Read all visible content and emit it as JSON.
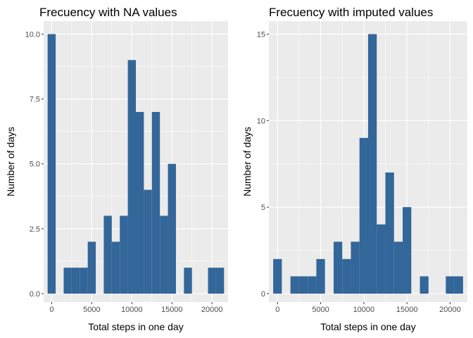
{
  "chart_data": [
    {
      "type": "bar",
      "title": "Frecuency with NA values",
      "xlabel": "Total steps in one day",
      "ylabel": "Number of days",
      "bin_width": 1000,
      "bin_centers": [
        0,
        2000,
        3000,
        4000,
        5000,
        7000,
        8000,
        9000,
        10000,
        11000,
        12000,
        13000,
        14000,
        15000,
        17000,
        20000,
        21000
      ],
      "values": [
        10,
        1,
        1,
        1,
        2,
        3,
        2,
        3,
        9,
        7,
        4,
        7,
        3,
        5,
        1,
        1,
        1
      ],
      "xlim": [
        -1000,
        22000
      ],
      "ylim": [
        0,
        10.5
      ],
      "x_ticks": [
        0,
        5000,
        10000,
        15000,
        20000
      ],
      "x_tick_labels": [
        "0",
        "5000",
        "10000",
        "15000",
        "20000"
      ],
      "y_ticks": [
        0,
        2.5,
        5,
        7.5,
        10
      ],
      "y_tick_labels": [
        "0.0",
        "2.5",
        "5.0",
        "7.5",
        "10.0"
      ],
      "fill_color": "#336699",
      "panel_color": "#ebebeb",
      "grid": true
    },
    {
      "type": "bar",
      "title": "Frecuency with imputed values",
      "xlabel": "Total steps in one day",
      "ylabel": "Number of days",
      "bin_width": 1000,
      "bin_centers": [
        0,
        2000,
        3000,
        4000,
        5000,
        7000,
        8000,
        9000,
        10000,
        11000,
        12000,
        13000,
        14000,
        15000,
        17000,
        20000,
        21000
      ],
      "values": [
        2,
        1,
        1,
        1,
        2,
        3,
        2,
        3,
        9,
        15,
        4,
        7,
        3,
        5,
        1,
        1,
        1
      ],
      "xlim": [
        -1000,
        22000
      ],
      "ylim": [
        0,
        15.75
      ],
      "x_ticks": [
        0,
        5000,
        10000,
        15000,
        20000
      ],
      "x_tick_labels": [
        "0",
        "5000",
        "10000",
        "15000",
        "20000"
      ],
      "y_ticks": [
        0,
        5,
        10,
        15
      ],
      "y_tick_labels": [
        "0",
        "5",
        "10",
        "15"
      ],
      "fill_color": "#336699",
      "panel_color": "#ebebeb",
      "grid": true
    }
  ]
}
